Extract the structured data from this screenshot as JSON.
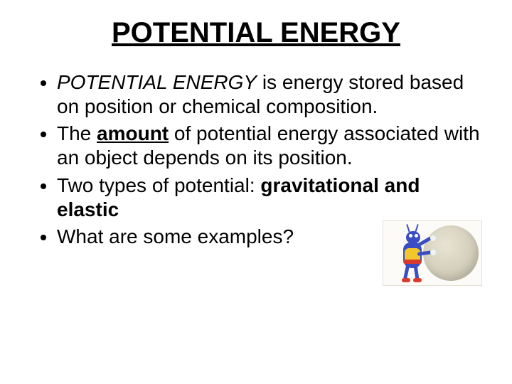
{
  "slide": {
    "title": "POTENTIAL ENERGY",
    "title_fontsize": 40,
    "body_fontsize": 28,
    "text_color": "#000000",
    "background_color": "#ffffff",
    "bullets": [
      {
        "runs": [
          {
            "text": "POTENTIAL ENERGY",
            "italic": true
          },
          {
            "text": " is energy stored based on position or chemical composition."
          }
        ]
      },
      {
        "runs": [
          {
            "text": "The "
          },
          {
            "text": "amount",
            "bold": true,
            "underline": true
          },
          {
            "text": " of potential energy associated with an object depends on its position."
          }
        ]
      },
      {
        "runs": [
          {
            "text": "Two types of potential: "
          },
          {
            "text": "gravitational and elastic",
            "bold": true
          }
        ]
      },
      {
        "runs": [
          {
            "text": "What are some examples?"
          }
        ]
      }
    ],
    "illustration": {
      "description": "cartoon ant character pushing a large round rock",
      "rock_color": "#d8d3c0",
      "ant_body_color": "#3a4ec4",
      "ant_chest_color": "#f2c72b",
      "ant_accent_color": "#d83b2e",
      "panel_bg": "#fcfbf7"
    }
  }
}
